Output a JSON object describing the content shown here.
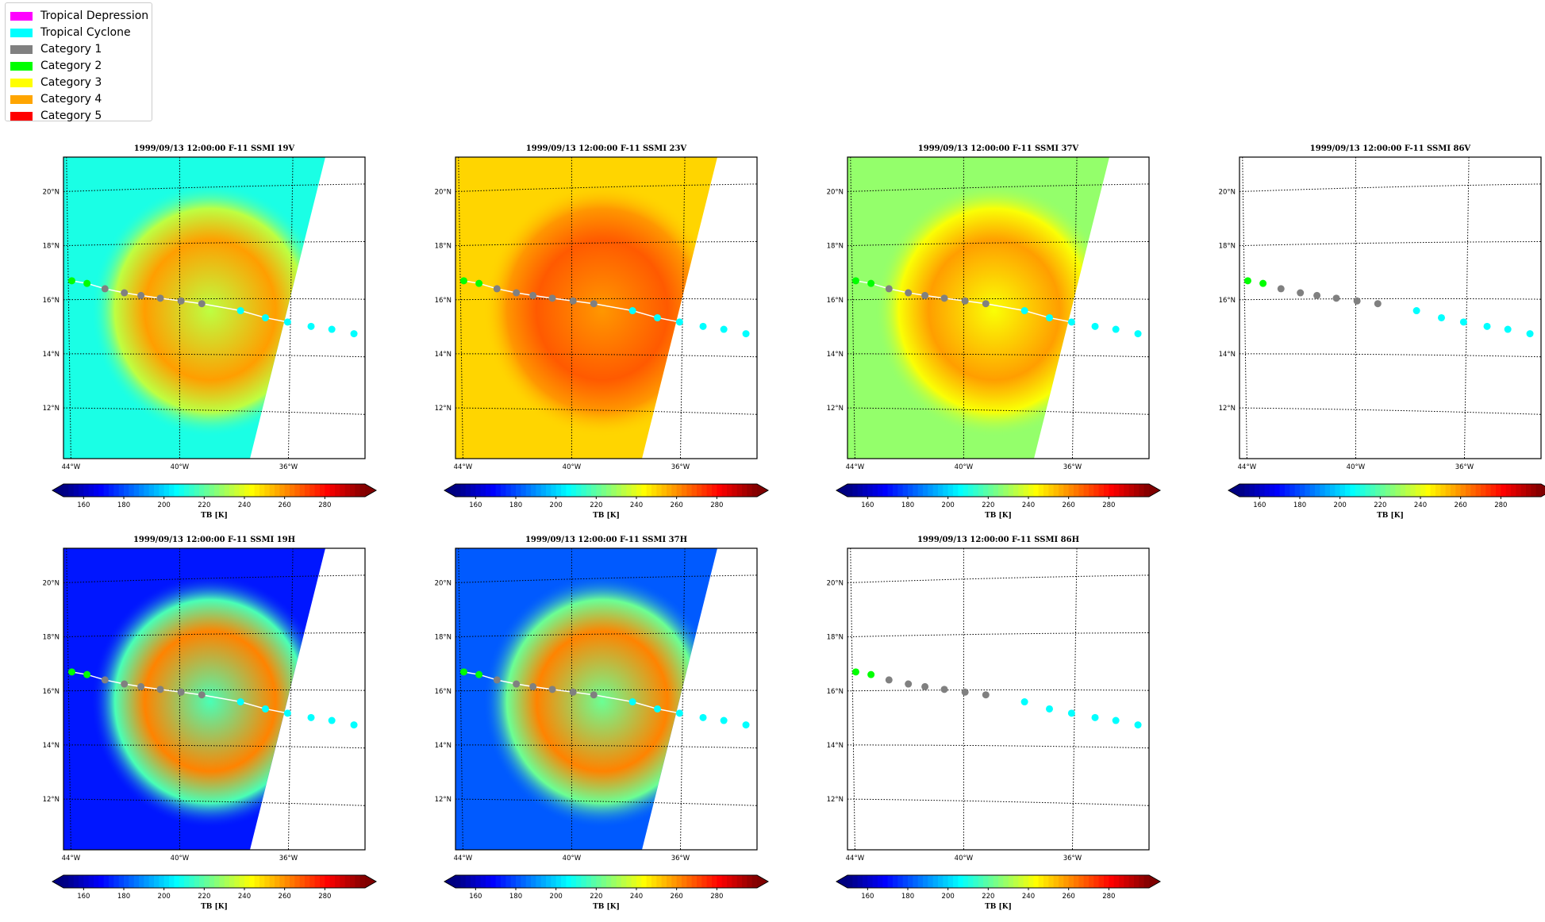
{
  "legend": {
    "items": [
      {
        "label": "Tropical Depression",
        "color": "#ff00ff"
      },
      {
        "label": "Tropical Cyclone",
        "color": "#00ffff"
      },
      {
        "label": "Category 1",
        "color": "#808080"
      },
      {
        "label": "Category 2",
        "color": "#00ff00"
      },
      {
        "label": "Category 3",
        "color": "#ffff00"
      },
      {
        "label": "Category 4",
        "color": "#ffa500"
      },
      {
        "label": "Category 5",
        "color": "#ff0000"
      }
    ]
  },
  "chart_data": {
    "type": "heatmap",
    "colormap": "jet",
    "colorbar": {
      "label": "TB [K]",
      "ticks": [
        160,
        180,
        200,
        220,
        240,
        260,
        280
      ],
      "range": [
        150,
        300
      ],
      "extend": "both"
    },
    "map": {
      "lon_range": [
        -44.2,
        -33.3
      ],
      "lat_range": [
        10.3,
        21.1
      ],
      "lat_ticks": [
        {
          "value": 20,
          "label": "20°N"
        },
        {
          "value": 18,
          "label": "18°N"
        },
        {
          "value": 16,
          "label": "16°N"
        },
        {
          "value": 14,
          "label": "14°N"
        },
        {
          "value": 12,
          "label": "12°N"
        }
      ],
      "lon_ticks": [
        {
          "value": -44,
          "label": "44°W"
        },
        {
          "value": -40,
          "label": "40°W"
        },
        {
          "value": -36,
          "label": "36°W"
        }
      ],
      "grid": "dotted"
    },
    "track": [
      {
        "lon": -43.9,
        "lat": 16.7,
        "category": "Category 2"
      },
      {
        "lon": -43.35,
        "lat": 16.6,
        "category": "Category 2"
      },
      {
        "lon": -42.7,
        "lat": 16.4,
        "category": "Category 1"
      },
      {
        "lon": -42.0,
        "lat": 16.25,
        "category": "Category 1"
      },
      {
        "lon": -41.4,
        "lat": 16.15,
        "category": "Category 1"
      },
      {
        "lon": -40.7,
        "lat": 16.05,
        "category": "Category 1"
      },
      {
        "lon": -39.95,
        "lat": 15.95,
        "category": "Category 1"
      },
      {
        "lon": -39.2,
        "lat": 15.85,
        "category": "Category 1"
      },
      {
        "lon": -37.8,
        "lat": 15.6,
        "category": "Tropical Cyclone"
      },
      {
        "lon": -36.9,
        "lat": 15.35,
        "category": "Tropical Cyclone"
      },
      {
        "lon": -36.1,
        "lat": 15.2,
        "category": "Tropical Cyclone"
      },
      {
        "lon": -35.25,
        "lat": 15.05,
        "category": "Tropical Cyclone"
      },
      {
        "lon": -34.5,
        "lat": 14.95,
        "category": "Tropical Cyclone"
      },
      {
        "lon": -33.7,
        "lat": 14.8,
        "category": "Tropical Cyclone"
      }
    ],
    "panels": [
      {
        "title": "1999/09/13 12:00:00  F-11 SSMI 19V",
        "background_tb": 210,
        "storm_tb": 258,
        "has_data": true,
        "mode": "warm-ring"
      },
      {
        "title": "1999/09/13 12:00:00  F-11 SSMI 23V",
        "background_tb": 250,
        "storm_tb": 268,
        "has_data": true,
        "mode": "warm-ring"
      },
      {
        "title": "1999/09/13 12:00:00  F-11 SSMI 37V",
        "background_tb": 228,
        "storm_tb": 258,
        "has_data": true,
        "mode": "warm-ring"
      },
      {
        "title": "1999/09/13 12:00:00  F-11 SSMI 86V",
        "has_data": false
      },
      {
        "title": "1999/09/13 12:00:00  F-11 SSMI 19H",
        "background_tb": 172,
        "storm_tb": 262,
        "has_data": true,
        "mode": "warm-ring"
      },
      {
        "title": "1999/09/13 12:00:00  F-11 SSMI 37H",
        "background_tb": 182,
        "storm_tb": 262,
        "has_data": true,
        "mode": "warm-ring"
      },
      {
        "title": "1999/09/13 12:00:00  F-11 SSMI 86H",
        "has_data": false
      }
    ]
  }
}
